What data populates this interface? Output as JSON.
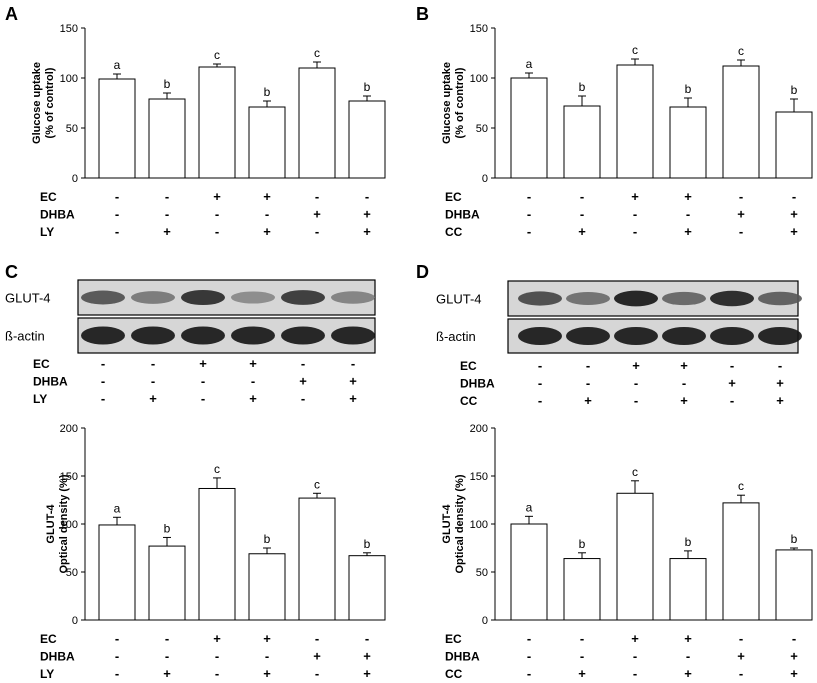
{
  "chart_data": [
    {
      "panel": "A",
      "type": "bar",
      "ylabel": [
        "Glucose uptake",
        "(% of control)"
      ],
      "ylim": [
        0,
        150
      ],
      "yticks": [
        0,
        50,
        100,
        150
      ],
      "values": [
        99,
        79,
        111,
        71,
        110,
        77
      ],
      "errors": [
        5,
        6,
        3,
        6,
        6,
        5
      ],
      "significance": [
        "a",
        "b",
        "c",
        "b",
        "c",
        "b"
      ],
      "conditions": [
        {
          "label": "EC",
          "signs": [
            "-",
            "-",
            "+",
            "+",
            "-",
            "-"
          ]
        },
        {
          "label": "DHBA",
          "signs": [
            "-",
            "-",
            "-",
            "-",
            "+",
            "+"
          ]
        },
        {
          "label": "LY",
          "signs": [
            "-",
            "+",
            "-",
            "+",
            "-",
            "+"
          ]
        }
      ]
    },
    {
      "panel": "B",
      "type": "bar",
      "ylabel": [
        "Glucose uptake",
        "(% of control)"
      ],
      "ylim": [
        0,
        150
      ],
      "yticks": [
        0,
        50,
        100,
        150
      ],
      "values": [
        100,
        72,
        113,
        71,
        112,
        66
      ],
      "errors": [
        5,
        10,
        6,
        9,
        6,
        13
      ],
      "significance": [
        "a",
        "b",
        "c",
        "b",
        "c",
        "b"
      ],
      "conditions": [
        {
          "label": "EC",
          "signs": [
            "-",
            "-",
            "+",
            "+",
            "-",
            "-"
          ]
        },
        {
          "label": "DHBA",
          "signs": [
            "-",
            "-",
            "-",
            "-",
            "+",
            "+"
          ]
        },
        {
          "label": "CC",
          "signs": [
            "-",
            "+",
            "-",
            "+",
            "-",
            "+"
          ]
        }
      ]
    },
    {
      "panel": "C",
      "type": "bar",
      "ylabel": [
        "GLUT-4",
        "Optical density (%)"
      ],
      "ylim": [
        0,
        200
      ],
      "yticks": [
        0,
        50,
        100,
        150,
        200
      ],
      "values": [
        99,
        77,
        137,
        69,
        127,
        67
      ],
      "errors": [
        8,
        9,
        11,
        6,
        5,
        3
      ],
      "significance": [
        "a",
        "b",
        "c",
        "b",
        "c",
        "b"
      ],
      "conditions": [
        {
          "label": "EC",
          "signs": [
            "-",
            "-",
            "+",
            "+",
            "-",
            "-"
          ]
        },
        {
          "label": "DHBA",
          "signs": [
            "-",
            "-",
            "-",
            "-",
            "+",
            "+"
          ]
        },
        {
          "label": "LY",
          "signs": [
            "-",
            "+",
            "-",
            "+",
            "-",
            "+"
          ]
        }
      ]
    },
    {
      "panel": "D",
      "type": "bar",
      "ylabel": [
        "GLUT-4",
        "Optical density (%)"
      ],
      "ylim": [
        0,
        200
      ],
      "yticks": [
        0,
        50,
        100,
        150,
        200
      ],
      "values": [
        100,
        64,
        132,
        64,
        122,
        73
      ],
      "errors": [
        8,
        6,
        13,
        8,
        8,
        2
      ],
      "significance": [
        "a",
        "b",
        "c",
        "b",
        "c",
        "b"
      ],
      "conditions": [
        {
          "label": "EC",
          "signs": [
            "-",
            "-",
            "+",
            "+",
            "-",
            "-"
          ]
        },
        {
          "label": "DHBA",
          "signs": [
            "-",
            "-",
            "-",
            "-",
            "+",
            "+"
          ]
        },
        {
          "label": "CC",
          "signs": [
            "-",
            "+",
            "-",
            "+",
            "-",
            "+"
          ]
        }
      ]
    }
  ],
  "blots": [
    {
      "panel": "C",
      "rows": [
        {
          "label": "GLUT-4",
          "intensity": [
            0.65,
            0.45,
            0.85,
            0.35,
            0.8,
            0.4
          ]
        },
        {
          "label": "ß-actin",
          "intensity": [
            0.95,
            0.95,
            0.95,
            0.95,
            0.95,
            0.95
          ]
        }
      ],
      "conditions": [
        {
          "label": "EC",
          "signs": [
            "-",
            "-",
            "+",
            "+",
            "-",
            "-"
          ]
        },
        {
          "label": "DHBA",
          "signs": [
            "-",
            "-",
            "-",
            "-",
            "+",
            "+"
          ]
        },
        {
          "label": "LY",
          "signs": [
            "-",
            "+",
            "-",
            "+",
            "-",
            "+"
          ]
        }
      ]
    },
    {
      "panel": "D",
      "rows": [
        {
          "label": "GLUT-4",
          "intensity": [
            0.7,
            0.5,
            0.95,
            0.55,
            0.9,
            0.6
          ]
        },
        {
          "label": "ß-actin",
          "intensity": [
            0.95,
            0.95,
            0.95,
            0.95,
            0.95,
            0.95
          ]
        }
      ],
      "conditions": [
        {
          "label": "EC",
          "signs": [
            "-",
            "-",
            "+",
            "+",
            "-",
            "-"
          ]
        },
        {
          "label": "DHBA",
          "signs": [
            "-",
            "-",
            "-",
            "-",
            "+",
            "+"
          ]
        },
        {
          "label": "CC",
          "signs": [
            "-",
            "+",
            "-",
            "+",
            "-",
            "+"
          ]
        }
      ]
    }
  ]
}
